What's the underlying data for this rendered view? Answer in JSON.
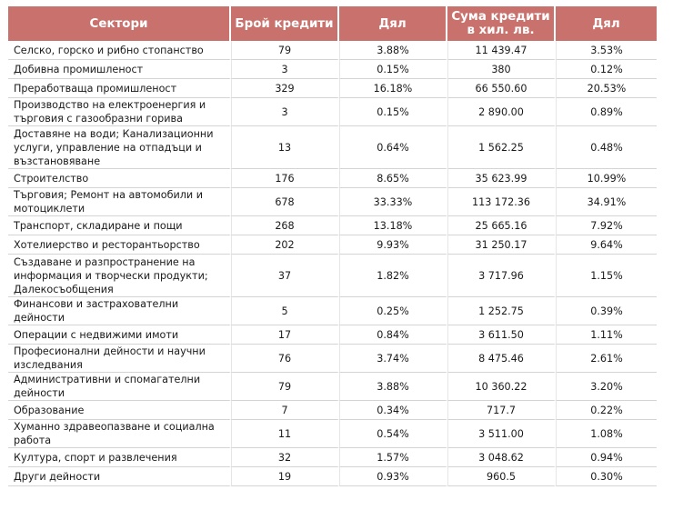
{
  "table": {
    "headers": {
      "sector": "Сектори",
      "count": "Брой кредити",
      "count_share": "Дял",
      "amount_line1": "Сума кредити",
      "amount_line2": "в хил. лв.",
      "amount_share": "Дял"
    },
    "rows": [
      {
        "sector": "Селско, горско и рибно стопанство",
        "count": "79",
        "count_share": "3.88%",
        "amount": "11 439.47",
        "amount_share": "3.53%"
      },
      {
        "sector": "Добивна промишленост",
        "count": "3",
        "count_share": "0.15%",
        "amount": "380",
        "amount_share": "0.12%"
      },
      {
        "sector": "Преработваща промишленост",
        "count": "329",
        "count_share": "16.18%",
        "amount": "66 550.60",
        "amount_share": "20.53%"
      },
      {
        "sector": "Производство на електроенергия и търговия с газообразни горива",
        "count": "3",
        "count_share": "0.15%",
        "amount": "2 890.00",
        "amount_share": "0.89%"
      },
      {
        "sector": "Доставяне на води; Канализационни услуги, управление на отпадъци и възстановяване",
        "count": "13",
        "count_share": "0.64%",
        "amount": "1 562.25",
        "amount_share": "0.48%"
      },
      {
        "sector": "Строителство",
        "count": "176",
        "count_share": "8.65%",
        "amount": "35 623.99",
        "amount_share": "10.99%"
      },
      {
        "sector": "Търговия; Ремонт на автомобили и мотоциклети",
        "count": "678",
        "count_share": "33.33%",
        "amount": "113 172.36",
        "amount_share": "34.91%"
      },
      {
        "sector": "Транспорт, складиране и пощи",
        "count": "268",
        "count_share": "13.18%",
        "amount": "25 665.16",
        "amount_share": "7.92%"
      },
      {
        "sector": "Хотелиерство и ресторантьорство",
        "count": "202",
        "count_share": "9.93%",
        "amount": "31 250.17",
        "amount_share": "9.64%"
      },
      {
        "sector": "Създаване и разпространение на информация и творчески продукти; Далекосъобщения",
        "count": "37",
        "count_share": "1.82%",
        "amount": "3 717.96",
        "amount_share": "1.15%"
      },
      {
        "sector": "Финансови и застрахователни дейности",
        "count": "5",
        "count_share": "0.25%",
        "amount": "1 252.75",
        "amount_share": "0.39%"
      },
      {
        "sector": "Операции с недвижими имоти",
        "count": "17",
        "count_share": "0.84%",
        "amount": "3 611.50",
        "amount_share": "1.11%"
      },
      {
        "sector": "Професионални дейности и научни изследвания",
        "count": "76",
        "count_share": "3.74%",
        "amount": "8 475.46",
        "amount_share": "2.61%"
      },
      {
        "sector": "Административни и спомагателни дейности",
        "count": "79",
        "count_share": "3.88%",
        "amount": "10 360.22",
        "amount_share": "3.20%"
      },
      {
        "sector": "Образование",
        "count": "7",
        "count_share": "0.34%",
        "amount": "717.7",
        "amount_share": "0.22%"
      },
      {
        "sector": "Хуманно здравеопазване и социална работа",
        "count": "11",
        "count_share": "0.54%",
        "amount": "3 511.00",
        "amount_share": "1.08%"
      },
      {
        "sector": "Култура, спорт и развлечения",
        "count": "32",
        "count_share": "1.57%",
        "amount": "3 048.62",
        "amount_share": "0.94%"
      },
      {
        "sector": "Други дейности",
        "count": "19",
        "count_share": "0.93%",
        "amount": "960.5",
        "amount_share": "0.30%"
      }
    ]
  }
}
